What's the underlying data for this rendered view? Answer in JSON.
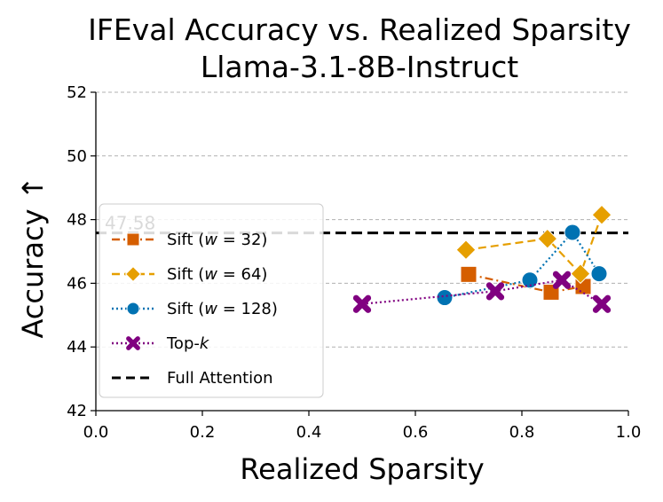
{
  "chart_data": {
    "type": "line",
    "title": "IFEval Accuracy vs. Realized Sparsity",
    "subtitle": "Llama-3.1-8B-Instruct",
    "xlabel": "Realized Sparsity",
    "ylabel": "Accuracy ↑",
    "xlim": [
      0.0,
      1.0
    ],
    "ylim": [
      42,
      52
    ],
    "xticks": [
      "0.0",
      "0.2",
      "0.4",
      "0.6",
      "0.8",
      "1.0"
    ],
    "yticks": [
      "42",
      "44",
      "46",
      "48",
      "50",
      "52"
    ],
    "grid": "horizontal dashed",
    "legend_position": "lower-left",
    "series": [
      {
        "name": "Sift (w = 32)",
        "legend_prefix": "Sift (",
        "legend_var": "w",
        "legend_suffix": " = 32)",
        "color": "#D55E00",
        "marker": "square",
        "linestyle": "dashdot",
        "x": [
          0.7,
          0.855,
          0.915
        ],
        "y": [
          46.28,
          45.72,
          45.9
        ]
      },
      {
        "name": "Sift (w = 64)",
        "legend_prefix": "Sift (",
        "legend_var": "w",
        "legend_suffix": " = 64)",
        "color": "#E69F00",
        "marker": "diamond",
        "linestyle": "dashed",
        "x": [
          0.695,
          0.848,
          0.91,
          0.95
        ],
        "y": [
          47.05,
          47.4,
          46.3,
          48.15
        ]
      },
      {
        "name": "Sift (w = 128)",
        "legend_prefix": "Sift (",
        "legend_var": "w",
        "legend_suffix": " = 128)",
        "color": "#0072B2",
        "marker": "circle",
        "linestyle": "dotted",
        "x": [
          0.655,
          0.815,
          0.895,
          0.945
        ],
        "y": [
          45.55,
          46.1,
          47.6,
          46.3
        ]
      },
      {
        "name": "Top-k",
        "legend_prefix": "Top-",
        "legend_var": "k",
        "legend_suffix": "",
        "color": "#800080",
        "marker": "x",
        "linestyle": "dotted",
        "x": [
          0.5,
          0.75,
          0.875,
          0.95
        ],
        "y": [
          45.35,
          45.75,
          46.1,
          45.35
        ]
      },
      {
        "name": "Full Attention",
        "legend_prefix": "Full Attention",
        "legend_var": "",
        "legend_suffix": "",
        "color": "#000000",
        "marker": "none",
        "linestyle": "dashed",
        "y_const": 47.58
      }
    ],
    "annotations": [
      {
        "text": "47.58",
        "x": 0.0,
        "y": 47.58
      }
    ]
  }
}
